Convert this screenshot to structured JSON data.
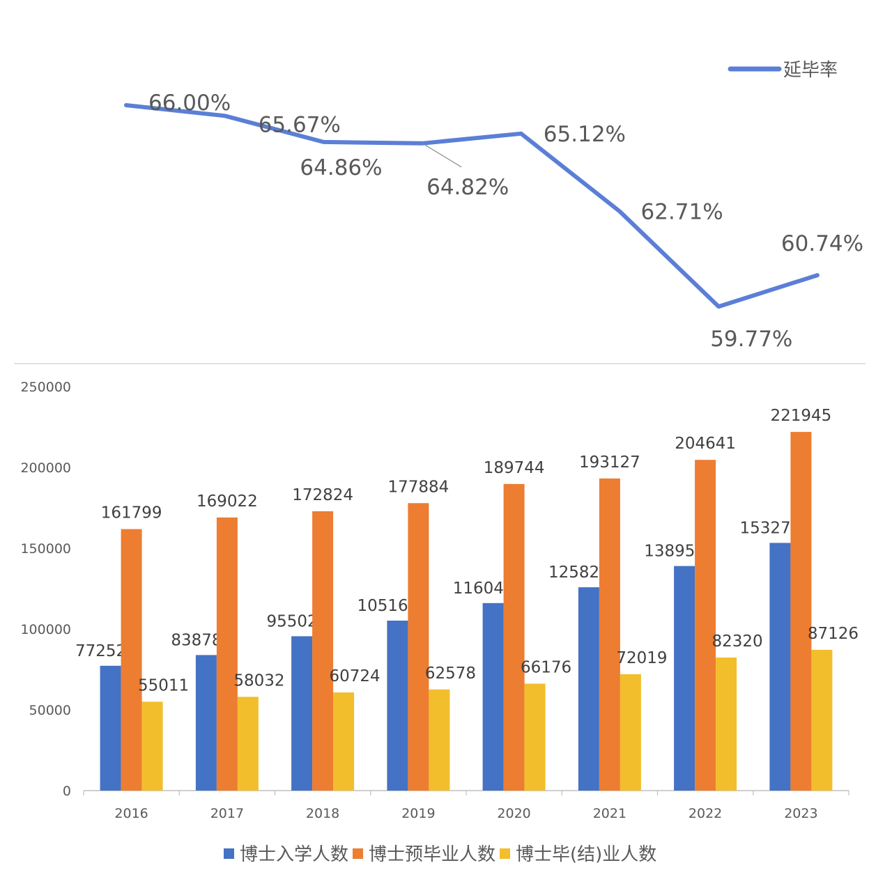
{
  "chart_data": [
    {
      "type": "line",
      "categories": [
        "2016",
        "2017",
        "2018",
        "2019",
        "2020",
        "2021",
        "2022",
        "2023"
      ],
      "series": [
        {
          "name": "延毕率",
          "values": [
            66.0,
            65.67,
            64.86,
            64.82,
            65.12,
            62.71,
            59.77,
            60.74
          ],
          "color": "#5B7FD6"
        }
      ],
      "data_labels": [
        "66.00%",
        "65.67%",
        "64.86%",
        "64.82%",
        "65.12%",
        "62.71%",
        "59.77%",
        "60.74%"
      ],
      "legend": {
        "position": "top-right",
        "label": "延毕率"
      },
      "unit": "%"
    },
    {
      "type": "bar",
      "categories": [
        "2016",
        "2017",
        "2018",
        "2019",
        "2020",
        "2021",
        "2022",
        "2023"
      ],
      "series": [
        {
          "name": "博士入学人数",
          "values": [
            77252,
            83878,
            95502,
            105169,
            116047,
            125823,
            138951,
            153275
          ],
          "color": "#4472C4"
        },
        {
          "name": "博士预毕业人数",
          "values": [
            161799,
            169022,
            172824,
            177884,
            189744,
            193127,
            204641,
            221945
          ],
          "color": "#ED7D31"
        },
        {
          "name": "博士毕(结)业人数",
          "values": [
            55011,
            58032,
            60724,
            62578,
            66176,
            72019,
            82320,
            87126
          ],
          "color": "#F2BE2C"
        }
      ],
      "ylim": [
        0,
        250000
      ],
      "yticks": [
        "0",
        "50000",
        "100000",
        "150000",
        "200000",
        "250000"
      ],
      "legend": {
        "position": "bottom"
      },
      "grid": false
    }
  ]
}
